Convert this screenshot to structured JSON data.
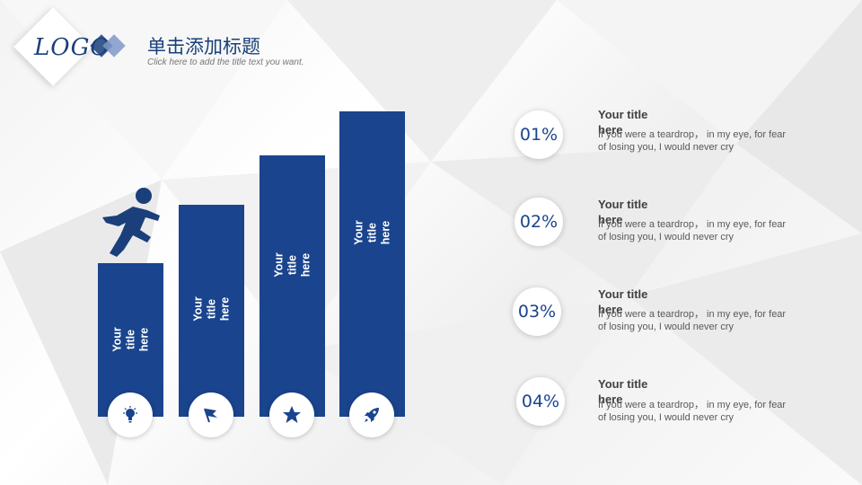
{
  "header": {
    "logo_text": "LOGO",
    "title": "单击添加标题",
    "subtitle": "Click here to add the title text you want."
  },
  "bars": [
    {
      "label": "Your title\nhere",
      "icon": "lightbulb-icon"
    },
    {
      "label": "Your title\nhere",
      "icon": "flag-icon"
    },
    {
      "label": "Your title\nhere",
      "icon": "star-icon"
    },
    {
      "label": "Your title\nhere",
      "icon": "rocket-icon"
    }
  ],
  "items": [
    {
      "pct": "01%",
      "title": "Your title here",
      "desc": "If you were a teardrop， in my eye,  for fear of losing you,  I  would never cry"
    },
    {
      "pct": "02%",
      "title": "Your title here",
      "desc": "If you were a teardrop， in my eye,  for fear of losing you,  I  would never cry"
    },
    {
      "pct": "03%",
      "title": "Your title here",
      "desc": "If you were a teardrop， in my eye,  for fear of losing you,  I  would never cry"
    },
    {
      "pct": "04%",
      "title": "Your title here",
      "desc": "If you were a teardrop， in my eye,  for fear of losing you,  I  would never cry"
    }
  ],
  "colors": {
    "accent": "#1a448e",
    "logo": "#1a3f7a",
    "text": "#404040"
  }
}
